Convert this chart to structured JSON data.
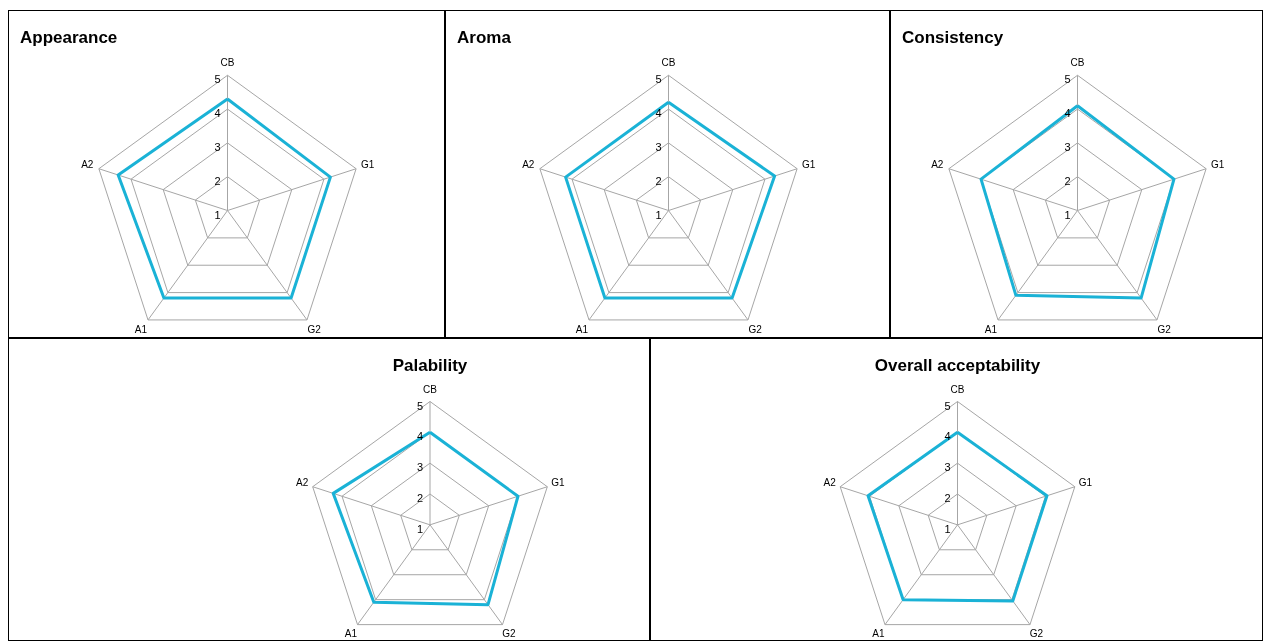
{
  "chart_data": [
    {
      "type": "radar",
      "title": "Appearance",
      "categories": [
        "CB",
        "G1",
        "G2",
        "A1",
        "A2"
      ],
      "series": [
        {
          "color": "#1ab2d6",
          "values": [
            4.3,
            4.2,
            4.2,
            4.2,
            4.4
          ]
        }
      ],
      "ylim": [
        1,
        5
      ],
      "yticks": [
        1,
        2,
        3,
        4,
        5
      ],
      "grid": true
    },
    {
      "type": "radar",
      "title": "Aroma",
      "categories": [
        "CB",
        "G1",
        "G2",
        "A1",
        "A2"
      ],
      "series": [
        {
          "color": "#1ab2d6",
          "values": [
            4.2,
            4.3,
            4.2,
            4.2,
            4.2
          ]
        }
      ],
      "ylim": [
        1,
        5
      ],
      "yticks": [
        1,
        2,
        3,
        4,
        5
      ],
      "grid": true
    },
    {
      "type": "radar",
      "title": "Consistency",
      "categories": [
        "CB",
        "G1",
        "G2",
        "A1",
        "A2"
      ],
      "series": [
        {
          "color": "#1ab2d6",
          "values": [
            4.1,
            4.0,
            4.2,
            4.1,
            4.0
          ]
        }
      ],
      "ylim": [
        1,
        5
      ],
      "yticks": [
        1,
        2,
        3,
        4,
        5
      ],
      "grid": true
    },
    {
      "type": "radar",
      "title": "Palability",
      "categories": [
        "CB",
        "G1",
        "G2",
        "A1",
        "A2"
      ],
      "series": [
        {
          "color": "#1ab2d6",
          "values": [
            4.0,
            4.0,
            4.2,
            4.1,
            4.3
          ]
        }
      ],
      "ylim": [
        1,
        5
      ],
      "yticks": [
        1,
        2,
        3,
        4,
        5
      ],
      "grid": true
    },
    {
      "type": "radar",
      "title": "Overall acceptability",
      "categories": [
        "CB",
        "G1",
        "G2",
        "A1",
        "A2"
      ],
      "series": [
        {
          "color": "#1ab2d6",
          "values": [
            4.0,
            4.05,
            4.05,
            4.0,
            4.05
          ]
        }
      ],
      "ylim": [
        1,
        5
      ],
      "yticks": [
        1,
        2,
        3,
        4,
        5
      ],
      "grid": true
    }
  ]
}
